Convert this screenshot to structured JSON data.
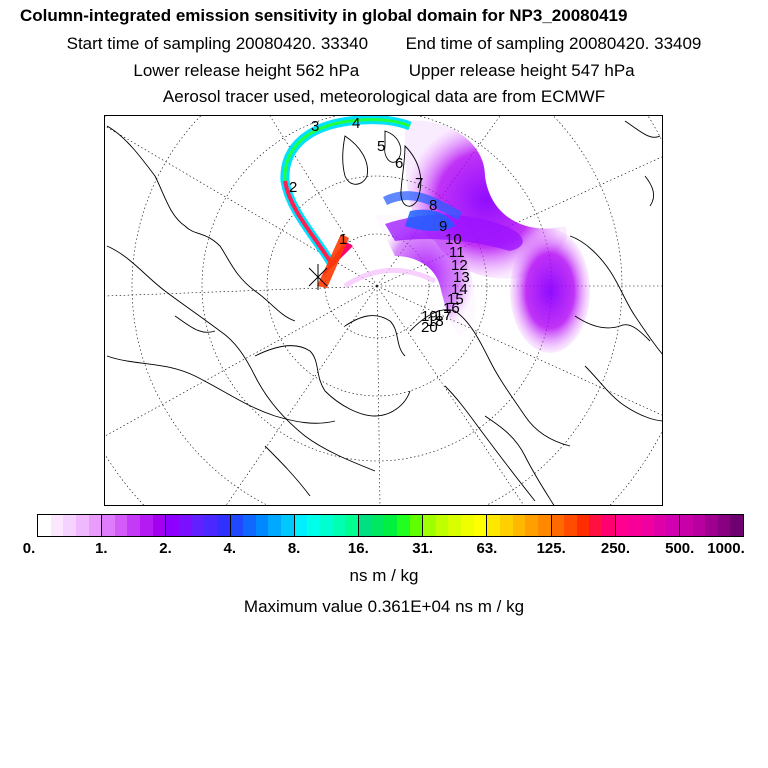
{
  "header": {
    "title": "Column-integrated emission sensitivity in global domain for NP3_20080419",
    "start_sampling": "Start time of sampling 20080420. 33340",
    "end_sampling": "End time of sampling 20080420. 33409",
    "lower_release": "Lower release height  562 hPa",
    "upper_release": "Upper release height  547 hPa",
    "tracer_info": "Aerosol tracer used, meteorological data are from ECMWF"
  },
  "trajectory_labels": [
    "1",
    "2",
    "3",
    "4",
    "5",
    "6",
    "7",
    "8",
    "9",
    "10",
    "11",
    "12",
    "13",
    "14",
    "15",
    "16",
    "17",
    "18",
    "19",
    "20"
  ],
  "colorbar": {
    "tick_labels": [
      "0.",
      "1.",
      "2.",
      "4.",
      "8.",
      "16.",
      "31.",
      "63.",
      "125.",
      "250.",
      "500.",
      "1000."
    ],
    "segments": [
      [
        "#ffffff",
        "#fbe8ff",
        "#f6d2fe",
        "#f0b8fe",
        "#ea9cfc"
      ],
      [
        "#df7cfb",
        "#d35cf9",
        "#c43af7",
        "#b41af4",
        "#a300f0"
      ],
      [
        "#8c00ff",
        "#7a10ff",
        "#6020ff",
        "#4a28ff",
        "#3030ff"
      ],
      [
        "#2048ff",
        "#1068ff",
        "#0088ff",
        "#00a8ff",
        "#00c8ff"
      ],
      [
        "#00f0ff",
        "#00ffea",
        "#00ffd0",
        "#00ffb0",
        "#00ff90"
      ],
      [
        "#00e080",
        "#00e860",
        "#00f040",
        "#20ff20",
        "#60ff00"
      ],
      [
        "#a0ff00",
        "#c0ff00",
        "#d8ff00",
        "#f0ff00",
        "#ffff00"
      ],
      [
        "#ffe800",
        "#ffd000",
        "#ffb800",
        "#ffa000",
        "#ff8800"
      ],
      [
        "#ff6a00",
        "#ff4c00",
        "#ff2e00",
        "#ff1040",
        "#ff0070"
      ],
      [
        "#ff0090",
        "#f80098",
        "#f000a0",
        "#e000a8",
        "#d000b0"
      ],
      [
        "#c800a8",
        "#b800a0",
        "#a00090",
        "#880080",
        "#6e0070"
      ]
    ]
  },
  "units_label": "ns m / kg",
  "maximum_value": "Maximum value  0.361E+04 ns m / kg"
}
